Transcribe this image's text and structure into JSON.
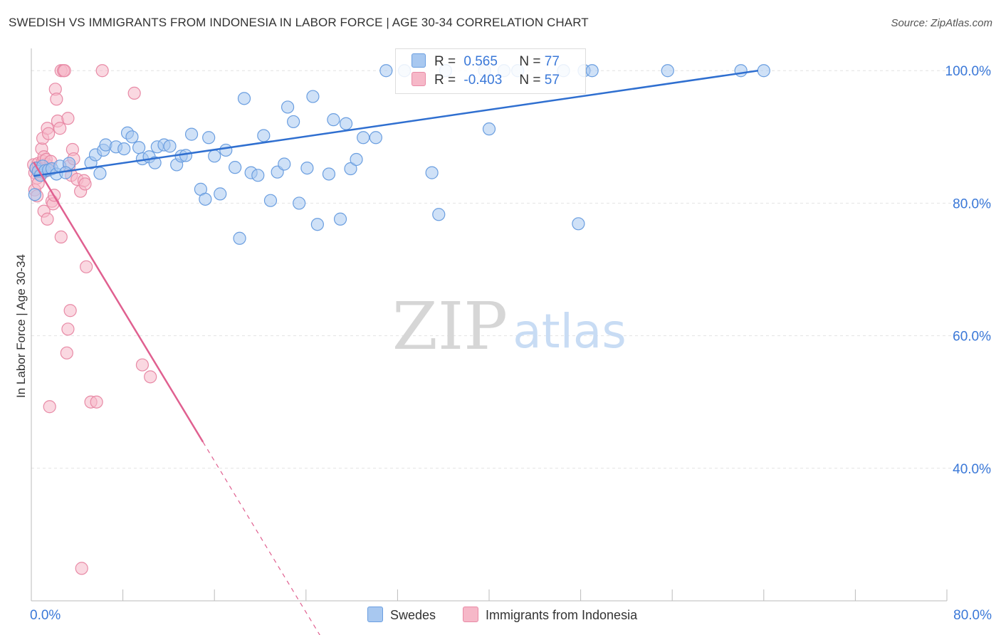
{
  "title": "SWEDISH VS IMMIGRANTS FROM INDONESIA IN LABOR FORCE | AGE 30-34 CORRELATION CHART",
  "source": "Source: ZipAtlas.com",
  "watermark": {
    "zip": "ZIP",
    "atlas": "atlas"
  },
  "legend": {
    "swedes": {
      "r_label": "R =",
      "r_value": "0.565",
      "n_label": "N =",
      "n_value": "77"
    },
    "indonesia": {
      "r_label": "R =",
      "r_value": "-0.403",
      "n_label": "N =",
      "n_value": "57"
    }
  },
  "colors": {
    "swedes_fill": "#a8c8f0",
    "swedes_stroke": "#6a9ee0",
    "swedes_line": "#2f6fd0",
    "indonesia_fill": "#f6b8c8",
    "indonesia_stroke": "#e88aa6",
    "indonesia_line": "#e06090",
    "axis_text": "#3a78d8",
    "grid": "#e2e2e2"
  },
  "chart_data": {
    "type": "scatter",
    "ylabel": "In Labor Force | Age 30-34",
    "xlim": [
      0,
      80
    ],
    "ylim": [
      20,
      104
    ],
    "x_tick_labels": [
      {
        "v": 0,
        "label": "0.0%"
      },
      {
        "v": 80,
        "label": "80.0%"
      }
    ],
    "y_tick_labels": [
      {
        "v": 100,
        "label": "100.0%"
      },
      {
        "v": 80,
        "label": "80.0%"
      },
      {
        "v": 60,
        "label": "60.0%"
      },
      {
        "v": 40,
        "label": "40.0%"
      }
    ],
    "grid": true,
    "series": [
      {
        "name": "Swedes",
        "trend": {
          "x1": 0.2,
          "y1": 84.1,
          "x2": 63.5,
          "y2": 100.0,
          "x_solid_end": 63.5
        },
        "points": [
          [
            0.4,
            85.3
          ],
          [
            0.6,
            84.8
          ],
          [
            0.8,
            84.2
          ],
          [
            1.0,
            85.6
          ],
          [
            1.2,
            84.9
          ],
          [
            0.3,
            81.3
          ],
          [
            1.5,
            85.0
          ],
          [
            1.8,
            85.2
          ],
          [
            2.2,
            84.4
          ],
          [
            2.5,
            85.6
          ],
          [
            3.3,
            86.0
          ],
          [
            3.0,
            84.6
          ],
          [
            5.2,
            86.1
          ],
          [
            5.6,
            87.3
          ],
          [
            6.0,
            84.5
          ],
          [
            6.3,
            88.0
          ],
          [
            6.5,
            88.8
          ],
          [
            7.4,
            88.5
          ],
          [
            8.1,
            88.2
          ],
          [
            8.4,
            90.6
          ],
          [
            8.8,
            90.0
          ],
          [
            9.4,
            88.4
          ],
          [
            9.7,
            86.7
          ],
          [
            10.3,
            87.0
          ],
          [
            10.8,
            86.1
          ],
          [
            11.0,
            88.5
          ],
          [
            11.6,
            88.8
          ],
          [
            12.1,
            88.6
          ],
          [
            12.7,
            85.8
          ],
          [
            13.1,
            87.1
          ],
          [
            13.5,
            87.2
          ],
          [
            14.0,
            90.4
          ],
          [
            14.8,
            82.1
          ],
          [
            15.2,
            80.6
          ],
          [
            15.5,
            89.9
          ],
          [
            16.0,
            87.1
          ],
          [
            16.5,
            81.4
          ],
          [
            17.0,
            88.0
          ],
          [
            17.8,
            85.4
          ],
          [
            18.2,
            74.7
          ],
          [
            18.6,
            95.8
          ],
          [
            19.2,
            84.6
          ],
          [
            19.8,
            84.2
          ],
          [
            20.3,
            90.2
          ],
          [
            20.9,
            80.4
          ],
          [
            21.5,
            84.7
          ],
          [
            22.1,
            85.9
          ],
          [
            22.4,
            94.5
          ],
          [
            22.9,
            92.3
          ],
          [
            23.4,
            80.0
          ],
          [
            24.1,
            85.3
          ],
          [
            24.6,
            96.1
          ],
          [
            25.0,
            76.8
          ],
          [
            26.0,
            84.4
          ],
          [
            26.4,
            92.6
          ],
          [
            27.0,
            77.6
          ],
          [
            27.5,
            92.0
          ],
          [
            27.9,
            85.2
          ],
          [
            28.4,
            86.6
          ],
          [
            29.0,
            89.9
          ],
          [
            30.1,
            89.9
          ],
          [
            31.0,
            100.0
          ],
          [
            32.6,
            100.0
          ],
          [
            35.0,
            84.6
          ],
          [
            35.6,
            78.3
          ],
          [
            36.2,
            100.0
          ],
          [
            39.6,
            100.0
          ],
          [
            40.0,
            91.2
          ],
          [
            41.3,
            100.0
          ],
          [
            42.5,
            100.0
          ],
          [
            46.5,
            100.0
          ],
          [
            47.8,
            76.9
          ],
          [
            48.3,
            100.0
          ],
          [
            49.0,
            100.0
          ],
          [
            55.6,
            100.0
          ],
          [
            62.0,
            100.0
          ],
          [
            64.0,
            100.0
          ]
        ]
      },
      {
        "name": "Immigrants from Indonesia",
        "trend": {
          "x1": 0.2,
          "y1": 86.2,
          "x2": 25.5,
          "y2": 14.0,
          "x_solid_end": 15.0
        },
        "points": [
          [
            0.2,
            85.8
          ],
          [
            0.3,
            84.6
          ],
          [
            0.4,
            85.2
          ],
          [
            0.5,
            83.8
          ],
          [
            0.6,
            86.0
          ],
          [
            0.7,
            85.0
          ],
          [
            0.8,
            84.4
          ],
          [
            0.9,
            85.6
          ],
          [
            1.0,
            86.3
          ],
          [
            1.1,
            85.4
          ],
          [
            1.2,
            84.8
          ],
          [
            1.3,
            85.9
          ],
          [
            0.3,
            82.0
          ],
          [
            0.5,
            81.1
          ],
          [
            0.6,
            83.0
          ],
          [
            0.9,
            88.2
          ],
          [
            1.0,
            89.8
          ],
          [
            1.1,
            87.0
          ],
          [
            1.3,
            86.6
          ],
          [
            1.4,
            91.3
          ],
          [
            1.5,
            90.5
          ],
          [
            1.6,
            85.2
          ],
          [
            1.7,
            86.3
          ],
          [
            1.8,
            80.3
          ],
          [
            1.9,
            79.9
          ],
          [
            2.0,
            81.2
          ],
          [
            2.1,
            97.2
          ],
          [
            2.2,
            95.7
          ],
          [
            2.3,
            92.4
          ],
          [
            2.5,
            91.3
          ],
          [
            2.6,
            100.0
          ],
          [
            2.8,
            100.0
          ],
          [
            2.9,
            100.0
          ],
          [
            3.2,
            92.8
          ],
          [
            3.3,
            85.6
          ],
          [
            3.5,
            84.2
          ],
          [
            3.6,
            88.1
          ],
          [
            3.7,
            86.7
          ],
          [
            4.0,
            83.6
          ],
          [
            4.3,
            81.8
          ],
          [
            4.6,
            83.4
          ],
          [
            2.6,
            74.9
          ],
          [
            1.1,
            78.8
          ],
          [
            1.4,
            77.6
          ],
          [
            3.4,
            63.8
          ],
          [
            3.2,
            61.0
          ],
          [
            3.1,
            57.4
          ],
          [
            1.6,
            49.3
          ],
          [
            4.7,
            82.9
          ],
          [
            4.8,
            70.4
          ],
          [
            5.2,
            50.0
          ],
          [
            5.7,
            50.0
          ],
          [
            6.2,
            100.0
          ],
          [
            9.0,
            96.6
          ],
          [
            9.7,
            55.6
          ],
          [
            10.4,
            53.8
          ],
          [
            4.4,
            24.9
          ]
        ]
      }
    ]
  }
}
